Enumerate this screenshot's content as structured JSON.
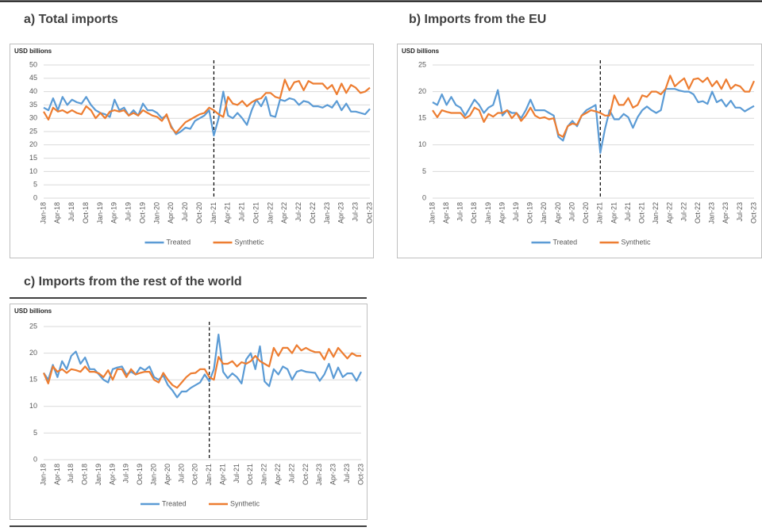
{
  "chart_data": [
    {
      "type": "line",
      "title": "a) Total imports",
      "ylabel": "USD billions",
      "categories": [
        "Jan-18",
        null,
        null,
        "Apr-18",
        null,
        null,
        "Jul-18",
        null,
        null,
        "Oct-18",
        null,
        null,
        "Jan-19",
        null,
        null,
        "Apr-19",
        null,
        null,
        "Jul-19",
        null,
        null,
        "Oct-19",
        null,
        null,
        "Jan-20",
        null,
        null,
        "Apr-20",
        null,
        null,
        "Jul-20",
        null,
        null,
        "Oct-20",
        null,
        null,
        "Jan-21",
        null,
        null,
        "Apr-21",
        null,
        null,
        "Jul-21",
        null,
        null,
        "Oct-21",
        null,
        null,
        "Jan-22",
        null,
        null,
        "Apr-22",
        null,
        null,
        "Jul-22",
        null,
        null,
        "Oct-22",
        null,
        null,
        "Jan-23",
        null,
        null,
        "Apr-23",
        null,
        null,
        "Jul-23",
        null,
        null,
        "Oct-23"
      ],
      "series": [
        {
          "name": "Treated",
          "color": "#5b9bd5",
          "values": [
            34,
            33,
            37.5,
            33,
            38,
            35,
            37,
            36,
            35.5,
            38,
            35,
            33,
            32,
            31.5,
            30.5,
            37,
            33,
            34,
            31,
            33,
            31,
            35.5,
            33,
            33,
            32,
            30,
            31,
            27,
            24,
            25,
            26.5,
            26,
            29,
            30,
            31,
            33,
            23.5,
            30,
            40,
            31,
            30,
            32,
            30,
            27.5,
            33,
            37,
            34.5,
            38,
            31,
            30.5,
            37,
            36.5,
            37.5,
            37,
            35,
            36.5,
            36,
            34.5,
            34.5,
            34,
            35,
            34,
            36.5,
            33,
            35.5,
            32.5,
            32.5,
            32,
            31.5,
            33.5
          ]
        },
        {
          "name": "Synthetic",
          "color": "#ed7d31",
          "values": [
            32.5,
            29.5,
            34,
            32.5,
            33,
            32,
            33,
            32,
            31.5,
            34.5,
            33,
            30,
            32,
            30,
            32.5,
            33,
            32.5,
            33,
            31,
            32,
            31,
            33,
            32,
            31,
            30.5,
            29,
            31.5,
            26.5,
            24.5,
            26.5,
            28.5,
            29.5,
            30.5,
            31.5,
            32,
            34,
            33,
            31.5,
            30.5,
            38,
            35.5,
            35,
            36.5,
            34.5,
            36,
            37,
            37.5,
            39.5,
            39.5,
            38,
            37.5,
            44.5,
            40.5,
            43.5,
            44,
            40.5,
            44,
            43,
            43,
            43,
            41,
            42.5,
            39,
            43,
            39.5,
            42.5,
            41.5,
            39.5,
            40,
            41.5
          ]
        }
      ],
      "ylim": [
        0,
        50
      ],
      "yticks": [
        0,
        5,
        10,
        15,
        20,
        25,
        30,
        35,
        40,
        45,
        50
      ],
      "grid": true,
      "legend": "bottom",
      "vline": "Jan-21"
    },
    {
      "type": "line",
      "title": "b) Imports from the EU",
      "ylabel": "USD billions",
      "categories": [
        "Jan-18",
        null,
        null,
        "Apr-18",
        null,
        null,
        "Jul-18",
        null,
        null,
        "Oct-18",
        null,
        null,
        "Jan-19",
        null,
        null,
        "Apr-19",
        null,
        null,
        "Jul-19",
        null,
        null,
        "Oct-19",
        null,
        null,
        "Jan-20",
        null,
        null,
        "Apr-20",
        null,
        null,
        "Jul-20",
        null,
        null,
        "Oct-20",
        null,
        null,
        "Jan-21",
        null,
        null,
        "Apr-21",
        null,
        null,
        "Jul-21",
        null,
        null,
        "Oct-21",
        null,
        null,
        "Jan-22",
        null,
        null,
        "Apr-22",
        null,
        null,
        "Jul-22",
        null,
        null,
        "Oct-22",
        null,
        null,
        "Jan-23",
        null,
        null,
        "Apr-23",
        null,
        null,
        "Jul-23",
        null,
        null,
        "Oct-23"
      ],
      "series": [
        {
          "name": "Treated",
          "color": "#5b9bd5",
          "values": [
            18,
            17.5,
            19.5,
            17.5,
            19,
            17.5,
            17,
            15.5,
            17,
            18.5,
            17.5,
            16,
            17,
            17.5,
            20.3,
            15.5,
            16.5,
            16,
            16,
            15,
            16.5,
            18.5,
            16.5,
            16.5,
            16.5,
            16,
            15.5,
            11.5,
            10.8,
            13.5,
            14.5,
            13.5,
            15.5,
            16.5,
            17,
            17.5,
            8.5,
            13,
            16.5,
            14.8,
            14.8,
            15.8,
            15.2,
            13.2,
            15.2,
            16.5,
            17.2,
            16.5,
            16,
            16.5,
            20.5,
            20.5,
            20.5,
            20.2,
            20,
            20,
            19.5,
            18,
            18.2,
            17.7,
            20,
            18,
            18.5,
            17.2,
            18.3,
            17,
            17,
            16.3,
            16.8,
            17.3
          ]
        },
        {
          "name": "Synthetic",
          "color": "#ed7d31",
          "values": [
            16.5,
            15.2,
            16.5,
            16.2,
            16,
            16,
            16,
            15,
            15.5,
            17,
            16.5,
            14.3,
            15.8,
            15.3,
            16,
            16,
            16.5,
            15,
            16,
            14.5,
            15.5,
            17,
            15.5,
            15,
            15.2,
            14.8,
            15,
            12,
            11.5,
            13.5,
            14,
            13.8,
            15.5,
            16,
            16.5,
            16.3,
            16,
            15.5,
            15.5,
            19.3,
            17.5,
            17.5,
            18.8,
            17,
            17.5,
            19.3,
            19,
            20,
            20,
            19.5,
            20.5,
            23,
            21,
            21.8,
            22.5,
            20.5,
            22.3,
            22.5,
            21.8,
            22.6,
            21,
            22,
            20.5,
            22.3,
            20.5,
            21.3,
            21,
            20,
            20,
            22
          ]
        }
      ],
      "ylim": [
        0,
        25
      ],
      "yticks": [
        0,
        5,
        10,
        15,
        20,
        25
      ],
      "grid": true,
      "legend": "bottom",
      "vline": "Jan-21"
    },
    {
      "type": "line",
      "title": "c) Imports from the rest of the world",
      "ylabel": "USD billions",
      "categories": [
        "Jan-18",
        null,
        null,
        "Apr-18",
        null,
        null,
        "Jul-18",
        null,
        null,
        "Oct-18",
        null,
        null,
        "Jan-19",
        null,
        null,
        "Apr-19",
        null,
        null,
        "Jul-19",
        null,
        null,
        "Oct-19",
        null,
        null,
        "Jan-20",
        null,
        null,
        "Apr-20",
        null,
        null,
        "Jul-20",
        null,
        null,
        "Oct-20",
        null,
        null,
        "Jan-21",
        null,
        null,
        "Apr-21",
        null,
        null,
        "Jul-21",
        null,
        null,
        "Oct-21",
        null,
        null,
        "Jan-22",
        null,
        null,
        "Apr-22",
        null,
        null,
        "Jul-22",
        null,
        null,
        "Oct-22",
        null,
        null,
        "Jan-23",
        null,
        null,
        "Apr-23",
        null,
        null,
        "Jul-23",
        null,
        null,
        "Oct-23"
      ],
      "series": [
        {
          "name": "Treated",
          "color": "#5b9bd5",
          "values": [
            16.3,
            15,
            17.8,
            15.5,
            18.5,
            17,
            19.5,
            20.3,
            18,
            19.2,
            17,
            17,
            16,
            15,
            14.5,
            17,
            17.3,
            17.5,
            16,
            16.5,
            16,
            17.3,
            16.8,
            17.5,
            15.5,
            15,
            15.8,
            14,
            13,
            11.7,
            12.8,
            12.8,
            13.5,
            14,
            14.5,
            16,
            14.7,
            17,
            23.5,
            16.5,
            15.3,
            16.2,
            15.5,
            14.3,
            18.8,
            20,
            17,
            21.3,
            14.7,
            13.8,
            17,
            16,
            17.5,
            17,
            15,
            16.5,
            16.8,
            16.5,
            16.4,
            16.3,
            14.8,
            16,
            18,
            15.3,
            17.3,
            15.5,
            16.2,
            16.2,
            14.8,
            16.5
          ]
        },
        {
          "name": "Synthetic",
          "color": "#ed7d31",
          "values": [
            16.3,
            14.3,
            17.5,
            16.5,
            17,
            16.3,
            17,
            16.8,
            16.5,
            17.5,
            16.5,
            16.5,
            16.2,
            15.5,
            16.8,
            15,
            17,
            17,
            15.5,
            17,
            16,
            16.3,
            16.5,
            16.5,
            15,
            14.5,
            16.3,
            15,
            14,
            13.5,
            14.5,
            15.5,
            16.2,
            16.3,
            17,
            17,
            15.5,
            15,
            19.3,
            18,
            18,
            18.5,
            17.5,
            18.3,
            18,
            18.5,
            19.5,
            18.5,
            18,
            17.5,
            21,
            19.5,
            21,
            21,
            20,
            21.5,
            20.5,
            21,
            20.5,
            20.2,
            20.2,
            18.8,
            20.8,
            19.3,
            21,
            20,
            19,
            20,
            19.5,
            19.5
          ]
        }
      ],
      "ylim": [
        0,
        25
      ],
      "yticks": [
        0,
        5,
        10,
        15,
        20,
        25
      ],
      "grid": true,
      "legend": "bottom",
      "vline": "Jan-21"
    }
  ]
}
